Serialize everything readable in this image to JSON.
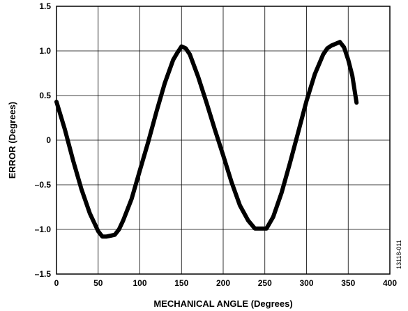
{
  "chart_data": {
    "type": "line",
    "title": "",
    "xlabel": "MECHANICAL ANGLE (Degrees)",
    "ylabel": "ERROR (Degrees)",
    "xlim": [
      0,
      400
    ],
    "ylim": [
      -1.5,
      1.5
    ],
    "xticks": [
      0,
      50,
      100,
      150,
      200,
      250,
      300,
      350,
      400
    ],
    "yticks": [
      -1.5,
      -1.0,
      -0.5,
      0,
      0.5,
      1.0,
      1.5
    ],
    "xtick_labels": [
      "0",
      "50",
      "100",
      "150",
      "200",
      "250",
      "300",
      "350",
      "400"
    ],
    "ytick_labels": [
      "–1.5",
      "–1.0",
      "–0.5",
      "0",
      "0.5",
      "1.0",
      "1.5"
    ],
    "grid": true,
    "legend": "none",
    "line_color": "#000000",
    "series": [
      {
        "x": [
          0,
          10,
          20,
          30,
          40,
          50,
          55,
          60,
          65,
          70,
          75,
          80,
          90,
          100,
          110,
          120,
          130,
          140,
          145,
          150,
          155,
          160,
          170,
          180,
          190,
          200,
          210,
          220,
          230,
          238,
          245,
          252,
          260,
          270,
          280,
          290,
          300,
          310,
          320,
          325,
          330,
          335,
          340,
          345,
          350,
          355,
          360
        ],
        "y": [
          0.43,
          0.12,
          -0.23,
          -0.55,
          -0.82,
          -1.02,
          -1.08,
          -1.08,
          -1.07,
          -1.06,
          -1.0,
          -0.9,
          -0.66,
          -0.34,
          -0.02,
          0.32,
          0.64,
          0.9,
          0.98,
          1.05,
          1.03,
          0.96,
          0.71,
          0.42,
          0.12,
          -0.17,
          -0.47,
          -0.73,
          -0.9,
          -0.99,
          -0.99,
          -0.99,
          -0.86,
          -0.59,
          -0.26,
          0.09,
          0.44,
          0.74,
          0.96,
          1.03,
          1.06,
          1.08,
          1.1,
          1.04,
          0.9,
          0.72,
          0.42
        ]
      }
    ],
    "figure_id": "13118-011"
  }
}
